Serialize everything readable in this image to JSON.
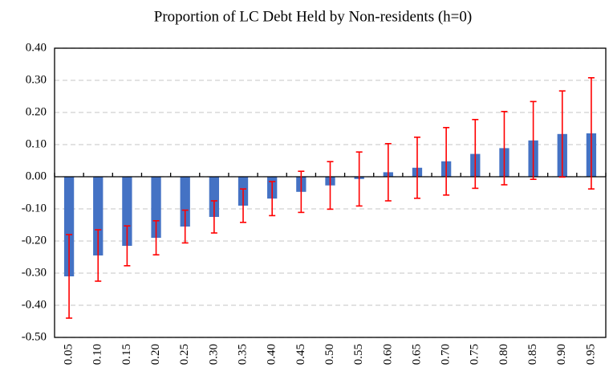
{
  "chart_data": {
    "type": "bar",
    "title": "Proportion of LC Debt Held by Non-residents (h=0)",
    "categories": [
      "0.05",
      "0.10",
      "0.15",
      "0.20",
      "0.25",
      "0.30",
      "0.35",
      "0.40",
      "0.45",
      "0.50",
      "0.55",
      "0.60",
      "0.65",
      "0.70",
      "0.75",
      "0.80",
      "0.85",
      "0.90",
      "0.95"
    ],
    "values": [
      -0.31,
      -0.245,
      -0.215,
      -0.19,
      -0.155,
      -0.125,
      -0.09,
      -0.068,
      -0.047,
      -0.027,
      -0.007,
      0.014,
      0.028,
      0.048,
      0.071,
      0.089,
      0.113,
      0.133,
      0.135
    ],
    "errors": [
      0.13,
      0.08,
      0.062,
      0.053,
      0.051,
      0.05,
      0.052,
      0.053,
      0.064,
      0.074,
      0.084,
      0.089,
      0.095,
      0.105,
      0.107,
      0.114,
      0.121,
      0.134,
      0.173
    ],
    "color": "#4472c4",
    "error_color": "#ff0000",
    "ylim": [
      -0.5,
      0.4
    ],
    "yticks": [
      {
        "value": -0.5,
        "label": "-0.50"
      },
      {
        "value": -0.4,
        "label": "-0.40"
      },
      {
        "value": -0.3,
        "label": "-0.30"
      },
      {
        "value": -0.2,
        "label": "-0.20"
      },
      {
        "value": -0.1,
        "label": "-0.10"
      },
      {
        "value": 0,
        "label": "0.00"
      },
      {
        "value": 0.1,
        "label": "0.10"
      },
      {
        "value": 0.2,
        "label": "0.20"
      },
      {
        "value": 0.3,
        "label": "0.30"
      },
      {
        "value": 0.4,
        "label": "0.40"
      }
    ],
    "grid": true
  }
}
